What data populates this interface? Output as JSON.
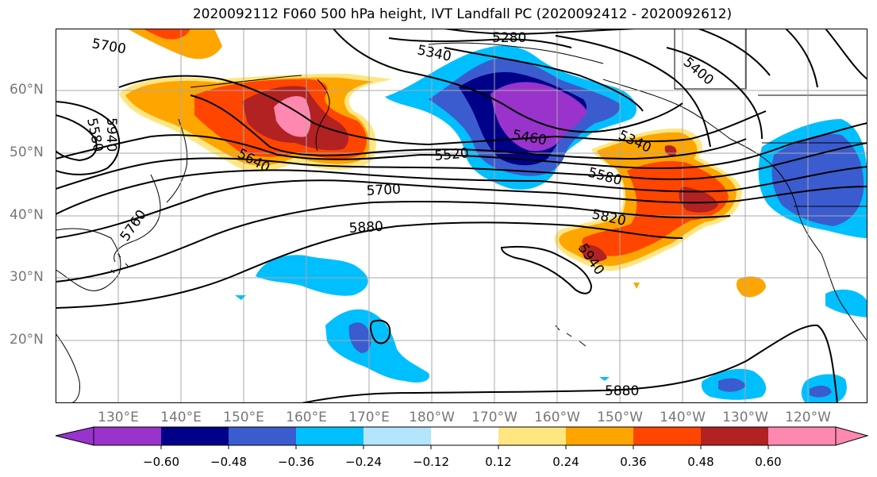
{
  "title": "2020092112 F060 500 hPa height, IVT Landfall PC (2020092412 - 2020092612)",
  "lat_labels": [
    "60°N",
    "50°N",
    "40°N",
    "30°N",
    "20°N"
  ],
  "lon_labels": [
    "130°E",
    "140°E",
    "150°E",
    "160°E",
    "170°E",
    "180°W",
    "170°W",
    "160°W",
    "150°W",
    "140°W",
    "130°W",
    "120°W"
  ],
  "contour_labels": [
    "5700",
    "5280",
    "5340",
    "5400",
    "5580",
    "5940",
    "5640",
    "5520",
    "5460",
    "5340",
    "5580",
    "5700",
    "5820",
    "5880",
    "5760",
    "5940",
    "5880"
  ],
  "colorbar": {
    "ticks": [
      "−0.60",
      "−0.48",
      "−0.36",
      "−0.24",
      "−0.12",
      "0.12",
      "0.24",
      "0.36",
      "0.48",
      "0.60"
    ],
    "colors": [
      "#9933cc",
      "#000088",
      "#3a5ccf",
      "#00bfff",
      "#b3e5fc",
      "#ffffff",
      "#ffe680",
      "#ffa500",
      "#ff4500",
      "#b22222",
      "#ff88b0"
    ]
  }
}
